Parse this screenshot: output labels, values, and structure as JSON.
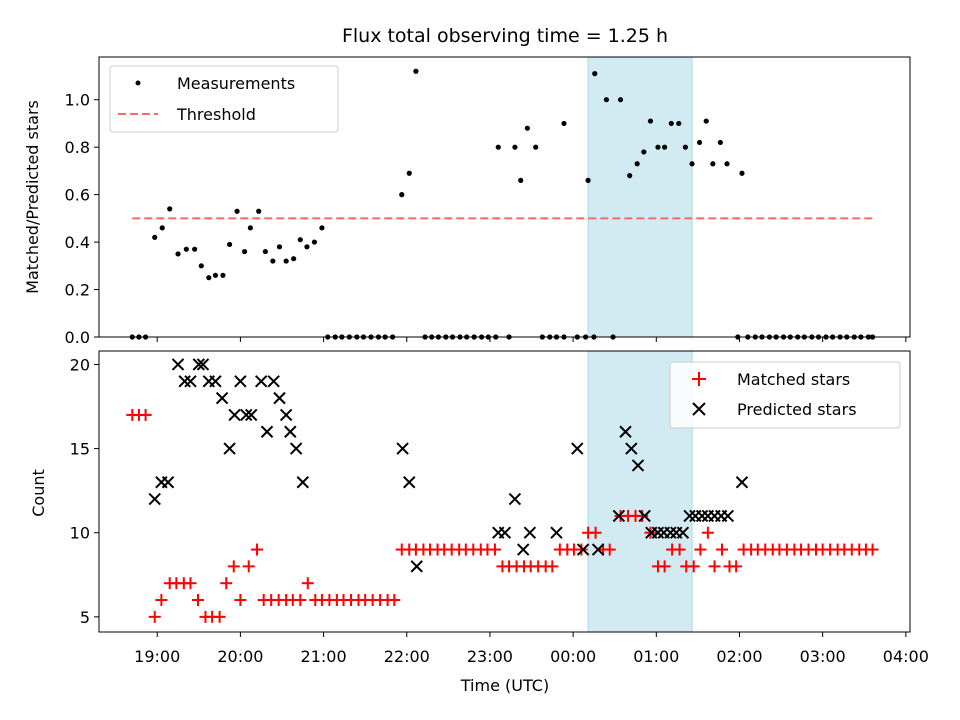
{
  "chart_data": {
    "type": "scatter",
    "title": "Flux total observing time = 1.25 h",
    "xlabel": "Time (UTC)",
    "x_ticks": [
      "19:00",
      "20:00",
      "21:00",
      "22:00",
      "23:00",
      "00:00",
      "01:00",
      "02:00",
      "03:00",
      "04:00"
    ],
    "x_range": [
      18.3,
      28.05
    ],
    "highlight_span": [
      24.18,
      25.43
    ],
    "colors": {
      "highlight": "#add8e6",
      "threshold": "#ff6666",
      "matched": "#ff0000",
      "predicted": "#000000"
    },
    "top": {
      "ylabel": "Matched/Predicted stars",
      "ylim": [
        0,
        1.18
      ],
      "y_ticks": [
        "0.0",
        "0.2",
        "0.4",
        "0.6",
        "0.8",
        "1.0"
      ],
      "legend": {
        "position": "top-left",
        "measurements": "Measurements",
        "threshold": "Threshold"
      },
      "threshold": 0.5,
      "threshold_range": [
        18.7,
        27.6
      ],
      "measurements": [
        [
          18.7,
          0
        ],
        [
          18.78,
          0
        ],
        [
          18.86,
          0
        ],
        [
          18.97,
          0.42
        ],
        [
          19.06,
          0.46
        ],
        [
          19.15,
          0.54
        ],
        [
          19.25,
          0.35
        ],
        [
          19.35,
          0.37
        ],
        [
          19.45,
          0.37
        ],
        [
          19.53,
          0.3
        ],
        [
          19.62,
          0.25
        ],
        [
          19.7,
          0.26
        ],
        [
          19.79,
          0.26
        ],
        [
          19.87,
          0.39
        ],
        [
          19.96,
          0.53
        ],
        [
          20.05,
          0.36
        ],
        [
          20.12,
          0.46
        ],
        [
          20.22,
          0.53
        ],
        [
          20.3,
          0.36
        ],
        [
          20.39,
          0.32
        ],
        [
          20.47,
          0.38
        ],
        [
          20.55,
          0.32
        ],
        [
          20.64,
          0.33
        ],
        [
          20.72,
          0.41
        ],
        [
          20.8,
          0.38
        ],
        [
          20.89,
          0.4
        ],
        [
          20.98,
          0.46
        ],
        [
          21.05,
          0
        ],
        [
          21.14,
          0
        ],
        [
          21.22,
          0
        ],
        [
          21.31,
          0
        ],
        [
          21.4,
          0
        ],
        [
          21.48,
          0
        ],
        [
          21.57,
          0
        ],
        [
          21.66,
          0
        ],
        [
          21.74,
          0
        ],
        [
          21.83,
          0
        ],
        [
          21.94,
          0.6
        ],
        [
          22.03,
          0.69
        ],
        [
          22.11,
          1.12
        ],
        [
          22.22,
          0
        ],
        [
          22.3,
          0
        ],
        [
          22.38,
          0
        ],
        [
          22.47,
          0
        ],
        [
          22.55,
          0
        ],
        [
          22.64,
          0
        ],
        [
          22.72,
          0
        ],
        [
          22.81,
          0
        ],
        [
          22.9,
          0
        ],
        [
          22.98,
          0
        ],
        [
          23.07,
          0
        ],
        [
          23.23,
          0
        ],
        [
          23.1,
          0.8
        ],
        [
          23.3,
          0.8
        ],
        [
          23.37,
          0.66
        ],
        [
          23.45,
          0.88
        ],
        [
          23.55,
          0.8
        ],
        [
          23.63,
          0
        ],
        [
          23.72,
          0
        ],
        [
          23.8,
          0
        ],
        [
          23.89,
          0
        ],
        [
          24.05,
          0
        ],
        [
          24.15,
          0
        ],
        [
          24.25,
          0
        ],
        [
          24.48,
          0
        ],
        [
          23.89,
          0.9
        ],
        [
          24.18,
          0.66
        ],
        [
          24.26,
          1.11
        ],
        [
          24.4,
          1.0
        ],
        [
          24.57,
          1.0
        ],
        [
          24.68,
          0.68
        ],
        [
          24.77,
          0.73
        ],
        [
          24.85,
          0.78
        ],
        [
          24.93,
          0.91
        ],
        [
          25.02,
          0.8
        ],
        [
          25.1,
          0.8
        ],
        [
          25.18,
          0.9
        ],
        [
          25.27,
          0.9
        ],
        [
          25.35,
          0.8
        ],
        [
          25.43,
          0.73
        ],
        [
          25.52,
          0.82
        ],
        [
          25.6,
          0.91
        ],
        [
          25.68,
          0.73
        ],
        [
          25.77,
          0.82
        ],
        [
          25.85,
          0.73
        ],
        [
          26.03,
          0.69
        ],
        [
          25.98,
          0
        ],
        [
          26.1,
          0
        ],
        [
          26.19,
          0
        ],
        [
          26.27,
          0
        ],
        [
          26.36,
          0
        ],
        [
          26.44,
          0
        ],
        [
          26.53,
          0
        ],
        [
          26.61,
          0
        ],
        [
          26.7,
          0
        ],
        [
          26.78,
          0
        ],
        [
          26.87,
          0
        ],
        [
          26.95,
          0
        ],
        [
          27.04,
          0
        ],
        [
          27.12,
          0
        ],
        [
          27.21,
          0
        ],
        [
          27.29,
          0
        ],
        [
          27.38,
          0
        ],
        [
          27.46,
          0
        ],
        [
          27.55,
          0
        ],
        [
          27.6,
          0
        ]
      ]
    },
    "bottom": {
      "ylabel": "Count",
      "ylim": [
        4.1,
        20.8
      ],
      "y_ticks": [
        "5",
        "10",
        "15",
        "20"
      ],
      "legend": {
        "position": "top-right",
        "matched": "Matched stars",
        "predicted": "Predicted stars"
      },
      "matched_stars": [
        [
          18.7,
          17
        ],
        [
          18.78,
          17
        ],
        [
          18.86,
          17
        ],
        [
          18.97,
          5
        ],
        [
          19.05,
          6
        ],
        [
          19.15,
          7
        ],
        [
          19.23,
          7
        ],
        [
          19.32,
          7
        ],
        [
          19.4,
          7
        ],
        [
          19.49,
          6
        ],
        [
          19.58,
          5
        ],
        [
          19.66,
          5
        ],
        [
          19.75,
          5
        ],
        [
          19.83,
          7
        ],
        [
          19.92,
          8
        ],
        [
          20.0,
          6
        ],
        [
          20.1,
          8
        ],
        [
          20.2,
          9
        ],
        [
          20.28,
          6
        ],
        [
          20.37,
          6
        ],
        [
          20.46,
          6
        ],
        [
          20.55,
          6
        ],
        [
          20.63,
          6
        ],
        [
          20.72,
          6
        ],
        [
          20.81,
          7
        ],
        [
          20.9,
          6
        ],
        [
          20.98,
          6
        ],
        [
          21.07,
          6
        ],
        [
          21.16,
          6
        ],
        [
          21.24,
          6
        ],
        [
          21.33,
          6
        ],
        [
          21.42,
          6
        ],
        [
          21.5,
          6
        ],
        [
          21.59,
          6
        ],
        [
          21.68,
          6
        ],
        [
          21.77,
          6
        ],
        [
          21.85,
          6
        ],
        [
          21.94,
          9
        ],
        [
          22.03,
          9
        ],
        [
          22.11,
          9
        ],
        [
          22.2,
          9
        ],
        [
          22.28,
          9
        ],
        [
          22.37,
          9
        ],
        [
          22.45,
          9
        ],
        [
          22.54,
          9
        ],
        [
          22.63,
          9
        ],
        [
          22.71,
          9
        ],
        [
          22.8,
          9
        ],
        [
          22.89,
          9
        ],
        [
          22.97,
          9
        ],
        [
          23.06,
          9
        ],
        [
          23.15,
          8
        ],
        [
          23.23,
          8
        ],
        [
          23.32,
          8
        ],
        [
          23.41,
          8
        ],
        [
          23.49,
          8
        ],
        [
          23.58,
          8
        ],
        [
          23.67,
          8
        ],
        [
          23.75,
          8
        ],
        [
          23.84,
          9
        ],
        [
          23.93,
          9
        ],
        [
          24.01,
          9
        ],
        [
          24.1,
          9
        ],
        [
          24.18,
          10
        ],
        [
          24.27,
          10
        ],
        [
          24.36,
          9
        ],
        [
          24.44,
          9
        ],
        [
          24.57,
          11
        ],
        [
          24.66,
          11
        ],
        [
          24.75,
          11
        ],
        [
          24.83,
          11
        ],
        [
          24.93,
          10
        ],
        [
          25.02,
          8
        ],
        [
          25.1,
          8
        ],
        [
          25.19,
          9
        ],
        [
          25.28,
          9
        ],
        [
          25.36,
          8
        ],
        [
          25.45,
          8
        ],
        [
          25.53,
          9
        ],
        [
          25.62,
          10
        ],
        [
          25.7,
          8
        ],
        [
          25.79,
          9
        ],
        [
          25.88,
          8
        ],
        [
          25.96,
          8
        ],
        [
          26.05,
          9
        ],
        [
          26.14,
          9
        ],
        [
          26.22,
          9
        ],
        [
          26.31,
          9
        ],
        [
          26.4,
          9
        ],
        [
          26.48,
          9
        ],
        [
          26.57,
          9
        ],
        [
          26.66,
          9
        ],
        [
          26.74,
          9
        ],
        [
          26.83,
          9
        ],
        [
          26.92,
          9
        ],
        [
          27.0,
          9
        ],
        [
          27.09,
          9
        ],
        [
          27.18,
          9
        ],
        [
          27.26,
          9
        ],
        [
          27.35,
          9
        ],
        [
          27.44,
          9
        ],
        [
          27.52,
          9
        ],
        [
          27.6,
          9
        ]
      ],
      "predicted_stars": [
        [
          18.97,
          12
        ],
        [
          19.05,
          13
        ],
        [
          19.13,
          13
        ],
        [
          19.25,
          20
        ],
        [
          19.33,
          19
        ],
        [
          19.4,
          19
        ],
        [
          19.5,
          20
        ],
        [
          19.55,
          20
        ],
        [
          19.62,
          19
        ],
        [
          19.7,
          19
        ],
        [
          19.78,
          18
        ],
        [
          19.87,
          15
        ],
        [
          19.93,
          17
        ],
        [
          20.0,
          19
        ],
        [
          20.07,
          17
        ],
        [
          20.13,
          17
        ],
        [
          20.25,
          19
        ],
        [
          20.32,
          16
        ],
        [
          20.4,
          19
        ],
        [
          20.47,
          18
        ],
        [
          20.55,
          17
        ],
        [
          20.6,
          16
        ],
        [
          20.67,
          15
        ],
        [
          20.75,
          13
        ],
        [
          21.95,
          15
        ],
        [
          22.03,
          13
        ],
        [
          22.12,
          8
        ],
        [
          23.1,
          10
        ],
        [
          23.18,
          10
        ],
        [
          23.3,
          12
        ],
        [
          23.4,
          9
        ],
        [
          23.48,
          10
        ],
        [
          23.8,
          10
        ],
        [
          24.05,
          15
        ],
        [
          24.12,
          9
        ],
        [
          24.3,
          9
        ],
        [
          24.55,
          11
        ],
        [
          24.63,
          16
        ],
        [
          24.7,
          15
        ],
        [
          24.78,
          14
        ],
        [
          24.86,
          11
        ],
        [
          24.94,
          10
        ],
        [
          25.02,
          10
        ],
        [
          25.09,
          10
        ],
        [
          25.17,
          10
        ],
        [
          25.24,
          10
        ],
        [
          25.32,
          10
        ],
        [
          25.4,
          11
        ],
        [
          25.47,
          11
        ],
        [
          25.55,
          11
        ],
        [
          25.62,
          11
        ],
        [
          25.7,
          11
        ],
        [
          25.78,
          11
        ],
        [
          25.86,
          11
        ],
        [
          26.03,
          13
        ]
      ]
    }
  }
}
